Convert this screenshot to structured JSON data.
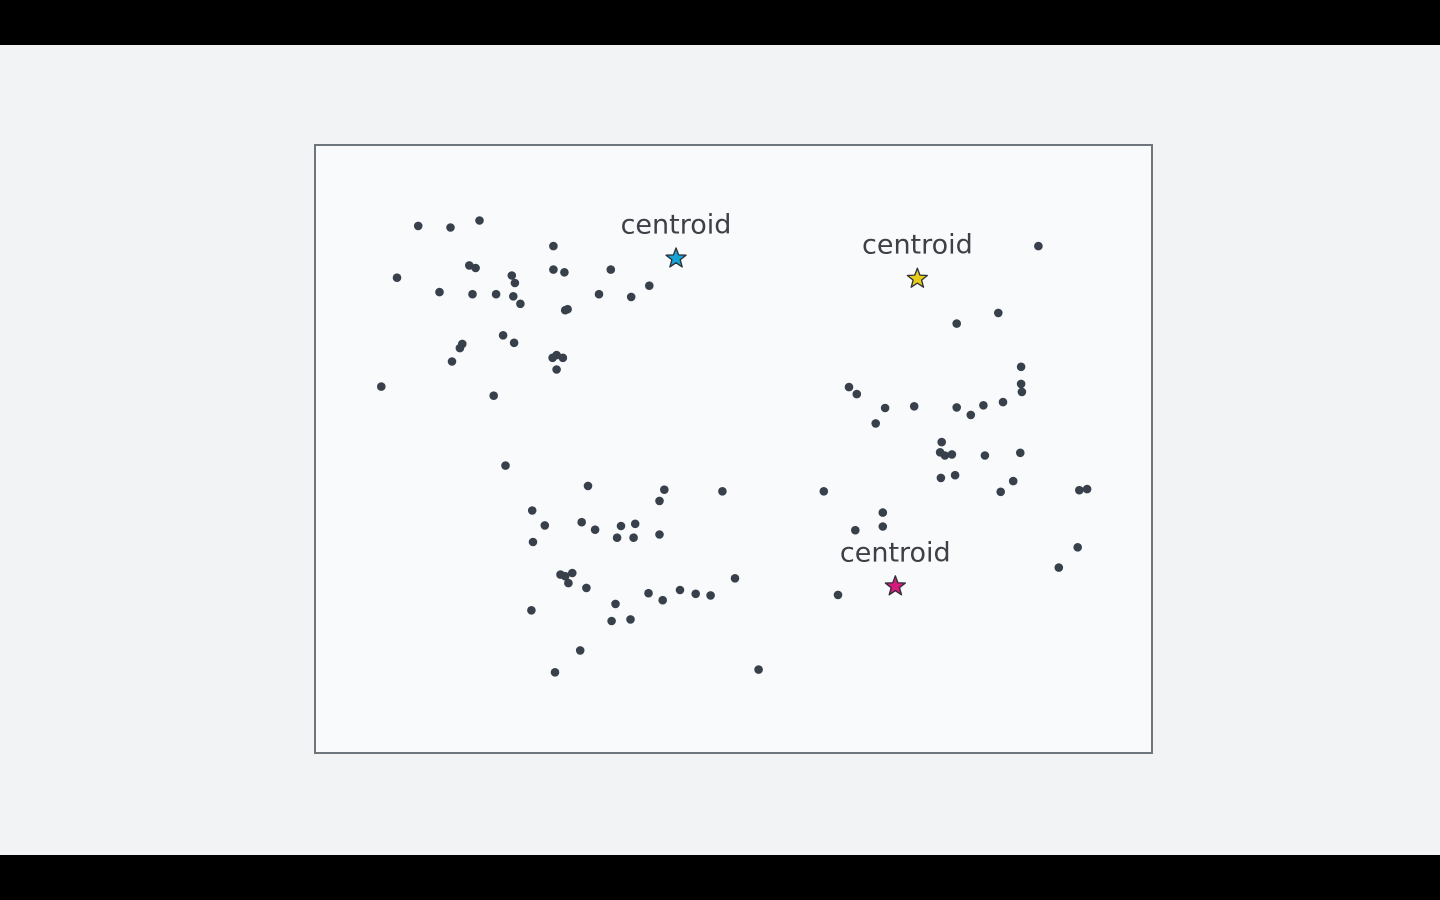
{
  "chart_data": {
    "type": "scatter",
    "title": "",
    "xlabel": "",
    "ylabel": "",
    "grid": false,
    "xlim": [
      0,
      100
    ],
    "ylim": [
      0,
      100
    ],
    "points": [
      [
        9.7,
        91.6
      ],
      [
        13.8,
        91.3
      ],
      [
        17.5,
        92.6
      ],
      [
        26.9,
        87.8
      ],
      [
        7.0,
        81.9
      ],
      [
        16.2,
        84.2
      ],
      [
        17.0,
        83.7
      ],
      [
        21.6,
        82.3
      ],
      [
        12.4,
        79.2
      ],
      [
        16.6,
        78.8
      ],
      [
        19.6,
        78.8
      ],
      [
        22.0,
        80.9
      ],
      [
        21.8,
        78.4
      ],
      [
        22.7,
        77.0
      ],
      [
        26.9,
        83.4
      ],
      [
        28.3,
        82.9
      ],
      [
        28.4,
        75.8
      ],
      [
        28.7,
        76.0
      ],
      [
        34.2,
        83.4
      ],
      [
        32.7,
        78.8
      ],
      [
        36.8,
        78.3
      ],
      [
        39.1,
        80.4
      ],
      [
        20.5,
        71.1
      ],
      [
        21.9,
        69.7
      ],
      [
        15.3,
        69.5
      ],
      [
        15.0,
        68.7
      ],
      [
        14.0,
        66.2
      ],
      [
        26.8,
        66.9
      ],
      [
        27.3,
        67.4
      ],
      [
        28.1,
        66.9
      ],
      [
        27.3,
        64.7
      ],
      [
        5.0,
        61.5
      ],
      [
        19.3,
        59.8
      ],
      [
        20.8,
        46.7
      ],
      [
        88.6,
        87.8
      ],
      [
        83.5,
        75.3
      ],
      [
        78.2,
        73.3
      ],
      [
        86.4,
        65.2
      ],
      [
        86.4,
        62.0
      ],
      [
        86.5,
        60.5
      ],
      [
        64.5,
        61.4
      ],
      [
        65.5,
        60.1
      ],
      [
        69.1,
        57.5
      ],
      [
        72.8,
        57.8
      ],
      [
        78.2,
        57.6
      ],
      [
        80.0,
        56.2
      ],
      [
        81.6,
        58.0
      ],
      [
        84.1,
        58.6
      ],
      [
        67.9,
        54.6
      ],
      [
        76.3,
        51.1
      ],
      [
        76.1,
        49.2
      ],
      [
        76.7,
        48.6
      ],
      [
        77.6,
        48.8
      ],
      [
        81.8,
        48.6
      ],
      [
        86.3,
        49.1
      ],
      [
        76.2,
        44.4
      ],
      [
        78.0,
        44.9
      ],
      [
        85.4,
        43.8
      ],
      [
        83.8,
        41.8
      ],
      [
        93.8,
        42.1
      ],
      [
        94.8,
        42.3
      ],
      [
        61.3,
        41.9
      ],
      [
        68.8,
        37.9
      ],
      [
        68.8,
        35.3
      ],
      [
        65.3,
        34.6
      ],
      [
        93.6,
        31.4
      ],
      [
        91.2,
        27.6
      ],
      [
        63.1,
        22.5
      ],
      [
        31.3,
        42.9
      ],
      [
        41.0,
        42.2
      ],
      [
        40.4,
        40.1
      ],
      [
        48.4,
        41.9
      ],
      [
        24.2,
        38.3
      ],
      [
        25.8,
        35.5
      ],
      [
        30.5,
        36.1
      ],
      [
        32.2,
        34.7
      ],
      [
        35.5,
        35.4
      ],
      [
        37.3,
        35.8
      ],
      [
        37.1,
        33.2
      ],
      [
        35.0,
        33.2
      ],
      [
        40.4,
        33.8
      ],
      [
        24.3,
        32.4
      ],
      [
        27.8,
        26.3
      ],
      [
        29.3,
        26.6
      ],
      [
        28.4,
        26.0
      ],
      [
        28.8,
        24.7
      ],
      [
        31.1,
        23.8
      ],
      [
        40.8,
        21.5
      ],
      [
        39.0,
        22.8
      ],
      [
        43.0,
        23.4
      ],
      [
        45.0,
        22.7
      ],
      [
        46.9,
        22.4
      ],
      [
        50.0,
        25.6
      ],
      [
        34.8,
        20.8
      ],
      [
        34.3,
        17.6
      ],
      [
        36.7,
        17.9
      ],
      [
        24.1,
        19.6
      ],
      [
        30.3,
        12.1
      ],
      [
        27.1,
        8.0
      ],
      [
        53.0,
        8.5
      ]
    ],
    "centroids": [
      {
        "label": "centroid",
        "x": 42.5,
        "y": 85.5,
        "color": "#17a3d6"
      },
      {
        "label": "centroid",
        "x": 73.2,
        "y": 81.7,
        "color": "#e8cc1a"
      },
      {
        "label": "centroid",
        "x": 70.4,
        "y": 24.1,
        "color": "#d8197e"
      }
    ],
    "point_color": "#37404b"
  }
}
